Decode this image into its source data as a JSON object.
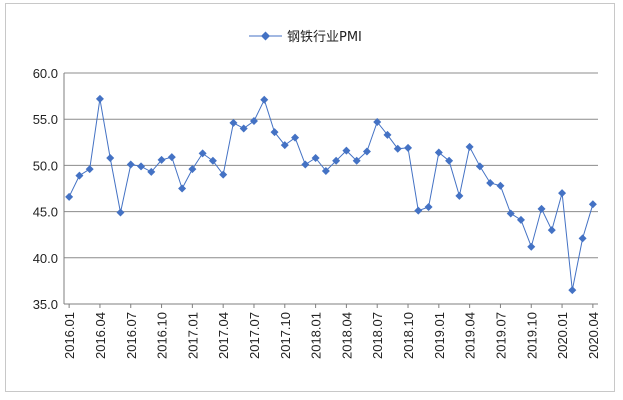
{
  "chart_data": {
    "type": "line",
    "title": "",
    "xlabel": "",
    "ylabel": "",
    "ylim": [
      35.0,
      60.0
    ],
    "yticks": [
      "35.0",
      "40.0",
      "45.0",
      "50.0",
      "55.0",
      "60.0"
    ],
    "grid": "horizontal",
    "legend_position": "top-center",
    "x_tick_labels": [
      "2016.01",
      "2016.04",
      "2016.07",
      "2016.10",
      "2017.01",
      "2017.04",
      "2017.07",
      "2017.10",
      "2018.01",
      "2018.04",
      "2018.07",
      "2018.10",
      "2019.01",
      "2019.04",
      "2019.07",
      "2019.10",
      "2020.01",
      "2020.04"
    ],
    "x": [
      "2016.01",
      "2016.02",
      "2016.03",
      "2016.04",
      "2016.05",
      "2016.06",
      "2016.07",
      "2016.08",
      "2016.09",
      "2016.10",
      "2016.11",
      "2016.12",
      "2017.01",
      "2017.02",
      "2017.03",
      "2017.04",
      "2017.05",
      "2017.06",
      "2017.07",
      "2017.08",
      "2017.09",
      "2017.10",
      "2017.11",
      "2017.12",
      "2018.01",
      "2018.02",
      "2018.03",
      "2018.04",
      "2018.05",
      "2018.06",
      "2018.07",
      "2018.08",
      "2018.09",
      "2018.10",
      "2018.11",
      "2018.12",
      "2019.01",
      "2019.02",
      "2019.03",
      "2019.04",
      "2019.05",
      "2019.06",
      "2019.07",
      "2019.08",
      "2019.09",
      "2019.10",
      "2019.11",
      "2019.12",
      "2020.01",
      "2020.02",
      "2020.03",
      "2020.04"
    ],
    "series": [
      {
        "name": "钢铁行业PMI",
        "color": "#4472c4",
        "values": [
          46.6,
          48.9,
          49.6,
          57.2,
          50.8,
          44.9,
          50.1,
          49.9,
          49.3,
          50.6,
          50.9,
          47.5,
          49.6,
          51.3,
          50.5,
          49.0,
          54.6,
          54.0,
          54.8,
          57.1,
          53.6,
          52.2,
          53.0,
          50.1,
          50.8,
          49.4,
          50.5,
          51.6,
          50.5,
          51.5,
          54.7,
          53.3,
          51.8,
          51.9,
          45.1,
          45.5,
          51.4,
          50.5,
          46.7,
          52.0,
          49.9,
          48.1,
          47.8,
          44.8,
          44.1,
          41.2,
          45.3,
          43.0,
          47.0,
          36.5,
          42.1,
          45.8
        ]
      }
    ]
  }
}
